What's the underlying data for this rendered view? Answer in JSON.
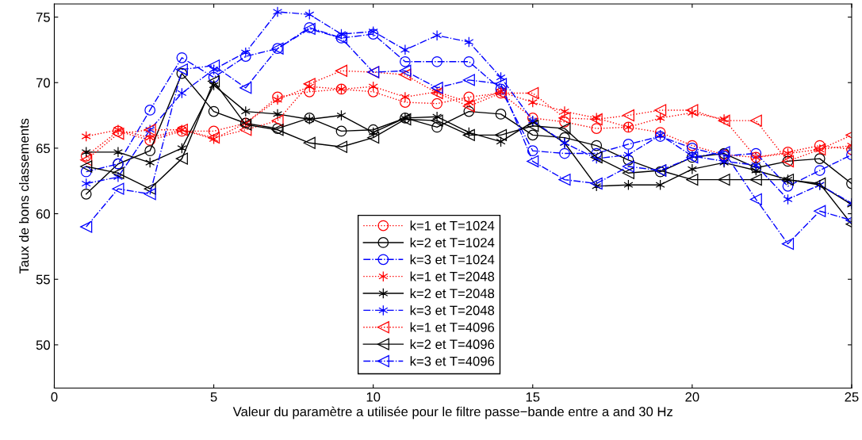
{
  "chart_data": {
    "type": "line",
    "xlabel": "Valeur du paramètre a utilisée pour le filtre passe−bande entre a and 30 Hz",
    "ylabel": "Taux de bons classements",
    "x": [
      1,
      2,
      3,
      4,
      5,
      6,
      7,
      8,
      9,
      10,
      11,
      12,
      13,
      14,
      15,
      16,
      17,
      18,
      19,
      20,
      21,
      22,
      23,
      24,
      25
    ],
    "xlim": [
      0,
      25
    ],
    "xticks": [
      0,
      5,
      10,
      15,
      20,
      25
    ],
    "ylim": [
      46.7,
      76
    ],
    "yticks": [
      50,
      55,
      60,
      65,
      70,
      75
    ],
    "grid": false,
    "legend": "bottom center",
    "series": [
      {
        "name": "k=1 et T=1024",
        "color": "#ff0000",
        "marker": "circle",
        "line_style": "dotted",
        "values": [
          64.4,
          66.3,
          65.6,
          66.3,
          66.3,
          66.9,
          68.9,
          69.3,
          69.5,
          69.3,
          68.5,
          68.4,
          68.9,
          69.2,
          67.3,
          67.0,
          66.5,
          66.6,
          66.2,
          65.2,
          64.5,
          64.3,
          64.7,
          65.2,
          64.9
        ]
      },
      {
        "name": "k=2 et T=1024",
        "color": "#000000",
        "marker": "circle",
        "line_style": "solid",
        "values": [
          61.5,
          63.8,
          64.8,
          70.7,
          67.8,
          66.9,
          66.5,
          67.3,
          66.3,
          66.4,
          67.3,
          66.6,
          67.8,
          67.6,
          66.0,
          65.8,
          65.2,
          64.1,
          63.2,
          64.3,
          64.6,
          63.5,
          64.0,
          64.2,
          62.3
        ]
      },
      {
        "name": "k=3 et T=1024",
        "color": "#0000ff",
        "marker": "circle",
        "line_style": "dashdot",
        "values": [
          63.2,
          63.8,
          67.9,
          71.9,
          70.4,
          72.0,
          72.6,
          74.2,
          73.4,
          73.7,
          71.6,
          71.6,
          71.6,
          69.5,
          64.8,
          64.6,
          64.6,
          65.3,
          65.9,
          65.0,
          64.4,
          64.6,
          62.1,
          63.3,
          64.5
        ]
      },
      {
        "name": "k=1 et T=2048",
        "color": "#ff0000",
        "marker": "cross",
        "line_style": "dotted",
        "values": [
          65.9,
          66.4,
          65.8,
          66.4,
          65.7,
          66.9,
          68.7,
          69.7,
          69.5,
          69.7,
          68.9,
          69.3,
          68.5,
          69.3,
          68.5,
          67.8,
          67.3,
          66.6,
          67.3,
          67.7,
          67.2,
          64.3,
          64.6,
          64.9,
          65.2
        ]
      },
      {
        "name": "k=2 et T=2048",
        "color": "#000000",
        "marker": "cross",
        "line_style": "solid",
        "values": [
          64.7,
          64.7,
          63.9,
          65.0,
          69.8,
          67.8,
          67.6,
          67.2,
          67.5,
          66.2,
          67.3,
          67.4,
          66.2,
          65.5,
          67.0,
          65.4,
          62.1,
          62.2,
          62.2,
          63.4,
          63.9,
          63.3,
          62.6,
          62.2,
          60.7
        ]
      },
      {
        "name": "k=3 et T=2048",
        "color": "#0000ff",
        "marker": "cross",
        "line_style": "dashdot",
        "values": [
          62.3,
          62.8,
          66.4,
          69.2,
          71.0,
          72.3,
          75.4,
          75.2,
          73.7,
          73.9,
          72.5,
          73.6,
          73.1,
          70.4,
          67.1,
          65.4,
          64.2,
          64.5,
          66.0,
          64.4,
          64.0,
          63.7,
          61.1,
          62.2,
          60.8
        ]
      },
      {
        "name": "k=1 et T=4096",
        "color": "#ff0000",
        "marker": "triangle",
        "line_style": "dotted",
        "values": [
          64.1,
          66.1,
          66.4,
          66.4,
          65.8,
          66.4,
          67.1,
          69.9,
          70.9,
          70.8,
          70.6,
          69.2,
          68.2,
          69.2,
          69.2,
          67.3,
          67.2,
          67.5,
          67.9,
          67.9,
          67.1,
          67.1,
          64.0,
          64.9,
          66.0
        ]
      },
      {
        "name": "k=2 et T=4096",
        "color": "#000000",
        "marker": "triangle",
        "line_style": "solid",
        "values": [
          63.6,
          63.1,
          61.9,
          64.2,
          70.1,
          66.8,
          66.4,
          65.4,
          65.1,
          65.8,
          67.2,
          67.1,
          66.0,
          66.0,
          66.7,
          66.5,
          64.3,
          63.1,
          63.3,
          62.6,
          62.6,
          62.6,
          62.6,
          62.3,
          59.2
        ]
      },
      {
        "name": "k=3 et T=4096",
        "color": "#0000ff",
        "marker": "triangle",
        "line_style": "dashdot",
        "values": [
          59.0,
          61.9,
          61.5,
          71.0,
          71.3,
          69.6,
          72.6,
          74.1,
          73.4,
          70.8,
          70.9,
          69.6,
          70.2,
          69.9,
          64.0,
          62.6,
          62.3,
          63.6,
          63.3,
          64.3,
          64.7,
          61.1,
          57.7,
          60.2,
          59.5
        ]
      }
    ]
  }
}
